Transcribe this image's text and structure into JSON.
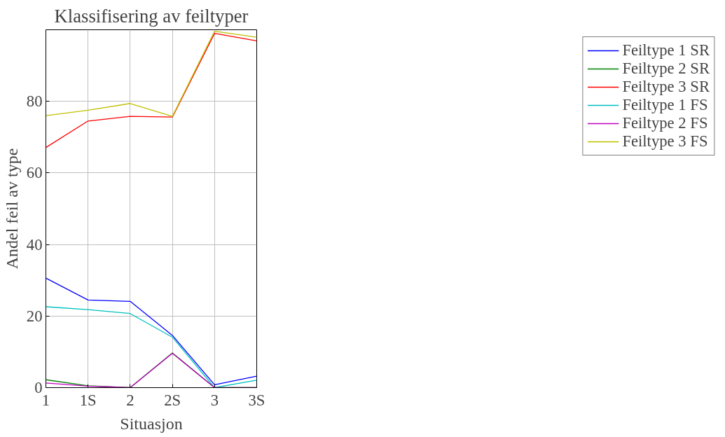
{
  "chart_data": {
    "type": "line",
    "title": "Klassifisering av feiltyper",
    "xlabel": "Situasjon",
    "ylabel": "Andel feil av type",
    "categories": [
      "1",
      "1S",
      "2",
      "2S",
      "3",
      "3S"
    ],
    "ylim": [
      0,
      100
    ],
    "yticks": [
      0,
      20,
      40,
      60,
      80
    ],
    "grid": true,
    "legend": "right",
    "marker": "none",
    "line_style": "solid",
    "series": [
      {
        "name": "Feiltype 1 SR",
        "color": "#0000ff",
        "values": [
          30.6,
          24.5,
          24.1,
          14.6,
          0.8,
          3.2
        ]
      },
      {
        "name": "Feiltype 2 SR",
        "color": "#008000",
        "values": [
          2.2,
          0.5,
          0,
          9.7,
          0,
          0
        ]
      },
      {
        "name": "Feiltype 3 SR",
        "color": "#ff0000",
        "values": [
          67.1,
          74.5,
          75.8,
          75.6,
          99,
          96.9
        ]
      },
      {
        "name": "Feiltype 1 FS",
        "color": "#00bfbf",
        "values": [
          22.6,
          21.8,
          20.7,
          14.1,
          0,
          2.1
        ]
      },
      {
        "name": "Feiltype 2 FS",
        "color": "#bf00bf",
        "values": [
          1.3,
          0.4,
          0,
          9.6,
          0,
          0
        ]
      },
      {
        "name": "Feiltype 3 FS",
        "color": "#bfbf00",
        "values": [
          76,
          77.5,
          79.4,
          75.8,
          99.6,
          97.9
        ]
      }
    ]
  }
}
